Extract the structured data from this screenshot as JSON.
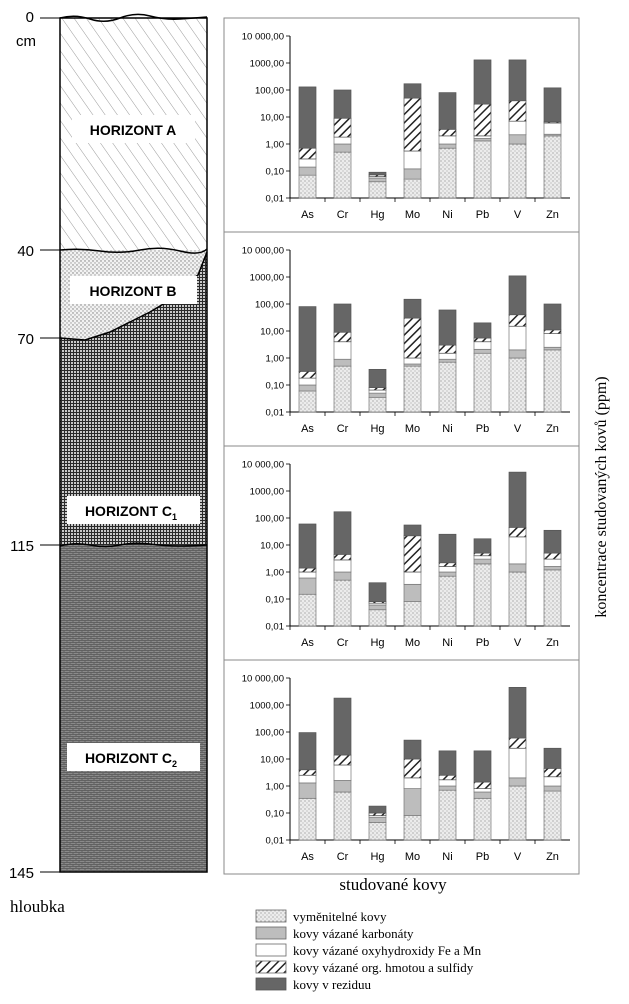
{
  "profile": {
    "depth_ticks": [
      "0",
      "40",
      "70",
      "115",
      "145"
    ],
    "depth_unit": "cm",
    "depth_label": "hloubka",
    "horizons": [
      {
        "name": "HORIZONT A",
        "sub": ""
      },
      {
        "name": "HORIZONT B",
        "sub": ""
      },
      {
        "name": "HORIZONT C",
        "sub": "1"
      },
      {
        "name": "HORIZONT C",
        "sub": "2"
      }
    ]
  },
  "y_axis_title": "koncentrace studovaných kovů (ppm)",
  "x_axis_title": "studované kovy",
  "legend": [
    {
      "label": "vyměnitelné kovy",
      "pattern": "dots"
    },
    {
      "label": "kovy vázané karbonáty",
      "pattern": "lightgray"
    },
    {
      "label": "kovy vázané oxyhydroxidy Fe a Mn",
      "pattern": "white"
    },
    {
      "label": "kovy vázané org. hmotou a sulfidy",
      "pattern": "hatch"
    },
    {
      "label": "kovy v reziduu",
      "pattern": "darkgray"
    }
  ],
  "chart_data": [
    {
      "type": "bar",
      "stacked": true,
      "log_scale": true,
      "horizon": "HORIZONT A",
      "categories": [
        "As",
        "Cr",
        "Hg",
        "Mo",
        "Ni",
        "Pb",
        "V",
        "Zn"
      ],
      "ylim": [
        0.01,
        10000
      ],
      "yticks": [
        "10 000,00",
        "1000,00",
        "100,00",
        "10,00",
        "1,00",
        "0,10",
        "0,01"
      ],
      "cumulative_tops": [
        [
          0.07,
          0.5,
          0.04,
          0.05,
          0.7,
          1.3,
          1.0,
          2.0
        ],
        [
          0.14,
          1.0,
          0.055,
          0.12,
          1.0,
          1.6,
          2.2,
          2.3
        ],
        [
          0.28,
          1.8,
          0.062,
          0.55,
          2.0,
          2.0,
          7.0,
          6.0
        ],
        [
          0.7,
          9.0,
          0.072,
          50,
          3.5,
          30,
          40,
          6.6
        ],
        [
          130,
          100,
          0.09,
          170,
          80,
          1300,
          1300,
          120
        ]
      ]
    },
    {
      "type": "bar",
      "stacked": true,
      "log_scale": true,
      "horizon": "HORIZONT B",
      "categories": [
        "As",
        "Cr",
        "Hg",
        "Mo",
        "Ni",
        "Pb",
        "V",
        "Zn"
      ],
      "ylim": [
        0.01,
        10000
      ],
      "yticks": [
        "10 000,00",
        "1000,00",
        "100,00",
        "10,00",
        "1,00",
        "0,10",
        "0,01"
      ],
      "cumulative_tops": [
        [
          0.06,
          0.5,
          0.035,
          0.5,
          0.7,
          1.5,
          1.0,
          2.0
        ],
        [
          0.1,
          0.9,
          0.05,
          0.6,
          0.9,
          2.1,
          2.0,
          2.5
        ],
        [
          0.18,
          4.0,
          0.065,
          1.0,
          1.5,
          4.0,
          15,
          8.0
        ],
        [
          0.32,
          9.0,
          0.08,
          30,
          3.0,
          5.5,
          40,
          11
        ],
        [
          80,
          100,
          0.38,
          150,
          60,
          20,
          1100,
          100
        ]
      ]
    },
    {
      "type": "bar",
      "stacked": true,
      "log_scale": true,
      "horizon": "HORIZONT C1",
      "categories": [
        "As",
        "Cr",
        "Hg",
        "Mo",
        "Ni",
        "Pb",
        "V",
        "Zn"
      ],
      "ylim": [
        0.01,
        10000
      ],
      "yticks": [
        "10 000,00",
        "1000,00",
        "100,00",
        "10,00",
        "1,00",
        "0,10",
        "0,01"
      ],
      "cumulative_tops": [
        [
          0.15,
          0.5,
          0.04,
          0.08,
          0.7,
          2.0,
          1.0,
          1.2
        ],
        [
          0.6,
          1.0,
          0.06,
          0.35,
          1.0,
          3.0,
          2.0,
          1.6
        ],
        [
          1.0,
          2.8,
          0.07,
          1.0,
          1.6,
          4.0,
          20,
          3.0
        ],
        [
          1.4,
          4.5,
          0.08,
          22,
          2.2,
          5.0,
          45,
          5.0
        ],
        [
          60,
          170,
          0.4,
          55,
          25,
          17,
          5000,
          35
        ]
      ]
    },
    {
      "type": "bar",
      "stacked": true,
      "log_scale": true,
      "horizon": "HORIZONT C2",
      "categories": [
        "As",
        "Cr",
        "Hg",
        "Mo",
        "Ni",
        "Pb",
        "V",
        "Zn"
      ],
      "ylim": [
        0.01,
        10000
      ],
      "yticks": [
        "10 000,00",
        "1000,00",
        "100,00",
        "10,00",
        "1,00",
        "0,10",
        "0,01"
      ],
      "cumulative_tops": [
        [
          0.35,
          0.6,
          0.045,
          0.08,
          0.7,
          0.35,
          1.0,
          0.65
        ],
        [
          1.3,
          1.6,
          0.07,
          0.8,
          1.0,
          0.6,
          2.0,
          1.0
        ],
        [
          2.5,
          6.0,
          0.08,
          2.0,
          1.7,
          0.8,
          25,
          2.2
        ],
        [
          4.0,
          14,
          0.1,
          10,
          2.5,
          1.4,
          60,
          4.5
        ],
        [
          95,
          1800,
          0.18,
          50,
          20,
          20,
          4500,
          25
        ]
      ]
    }
  ]
}
